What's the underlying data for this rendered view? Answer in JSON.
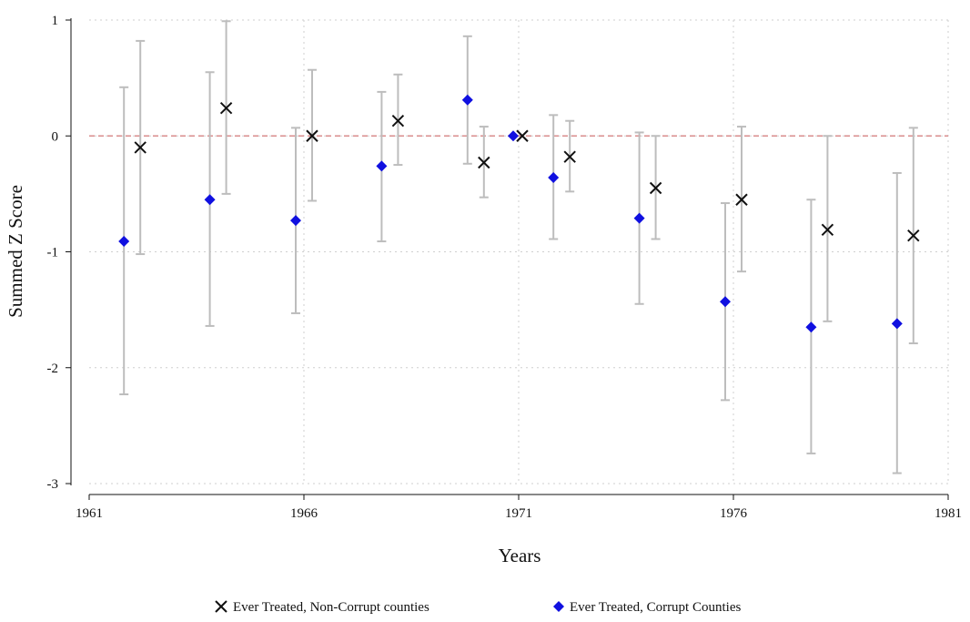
{
  "chart_data": {
    "type": "scatter",
    "xlabel": "Years",
    "ylabel": "Summed Z Score",
    "xlim": [
      1961,
      1981
    ],
    "ylim": [
      -3,
      1
    ],
    "xticks": [
      "1961",
      "1966",
      "1971",
      "1976",
      "1981"
    ],
    "yticks": [
      "1",
      "0",
      "-1",
      "-2",
      "-3"
    ],
    "grid": true,
    "reference_line": {
      "y": 0,
      "style": "dashed",
      "color": "#d98c8c"
    },
    "legend": {
      "placement": "bottom",
      "entries": [
        "Ever Treated, Non-Corrupt counties",
        "Ever Treated, Corrupt Counties"
      ]
    },
    "series": [
      {
        "name": "Ever Treated, Non-Corrupt counties",
        "marker": "x",
        "color": "#111111",
        "points": [
          {
            "x": 1962,
            "y": -0.1,
            "lo": -1.02,
            "hi": 0.82
          },
          {
            "x": 1964,
            "y": 0.24,
            "lo": -0.5,
            "hi": 0.99
          },
          {
            "x": 1966,
            "y": 0.0,
            "lo": -0.56,
            "hi": 0.57
          },
          {
            "x": 1968,
            "y": 0.13,
            "lo": -0.25,
            "hi": 0.53
          },
          {
            "x": 1970,
            "y": -0.23,
            "lo": -0.53,
            "hi": 0.08
          },
          {
            "x": 1971,
            "y": 0.0,
            "lo": 0.0,
            "hi": 0.0
          },
          {
            "x": 1972,
            "y": -0.18,
            "lo": -0.48,
            "hi": 0.13
          },
          {
            "x": 1974,
            "y": -0.45,
            "lo": -0.89,
            "hi": 0.0
          },
          {
            "x": 1976,
            "y": -0.55,
            "lo": -1.17,
            "hi": 0.08
          },
          {
            "x": 1978,
            "y": -0.81,
            "lo": -1.6,
            "hi": 0.0
          },
          {
            "x": 1980,
            "y": -0.86,
            "lo": -1.79,
            "hi": 0.07
          }
        ]
      },
      {
        "name": "Ever Treated, Corrupt Counties",
        "marker": "diamond",
        "color": "#1010e0",
        "points": [
          {
            "x": 1962,
            "y": -0.91,
            "lo": -2.23,
            "hi": 0.42
          },
          {
            "x": 1964,
            "y": -0.55,
            "lo": -1.64,
            "hi": 0.55
          },
          {
            "x": 1966,
            "y": -0.73,
            "lo": -1.53,
            "hi": 0.07
          },
          {
            "x": 1968,
            "y": -0.26,
            "lo": -0.91,
            "hi": 0.38
          },
          {
            "x": 1970,
            "y": 0.31,
            "lo": -0.24,
            "hi": 0.86
          },
          {
            "x": 1971,
            "y": 0.0,
            "lo": 0.0,
            "hi": 0.0
          },
          {
            "x": 1972,
            "y": -0.36,
            "lo": -0.89,
            "hi": 0.18
          },
          {
            "x": 1974,
            "y": -0.71,
            "lo": -1.45,
            "hi": 0.03
          },
          {
            "x": 1976,
            "y": -1.43,
            "lo": -2.28,
            "hi": -0.58
          },
          {
            "x": 1978,
            "y": -1.65,
            "lo": -2.74,
            "hi": -0.55
          },
          {
            "x": 1980,
            "y": -1.62,
            "lo": -2.91,
            "hi": -0.32
          }
        ]
      }
    ]
  }
}
